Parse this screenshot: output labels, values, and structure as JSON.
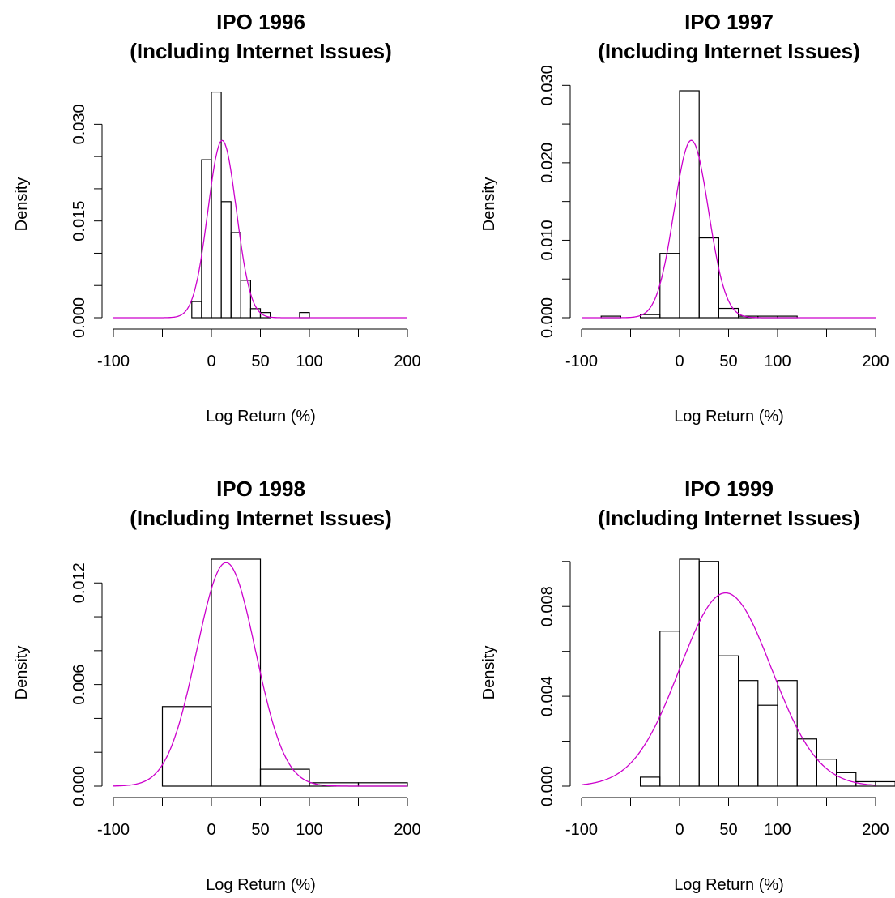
{
  "chart_data": [
    {
      "type": "bar",
      "title": [
        "IPO 1996",
        "(Including Internet Issues)"
      ],
      "xlabel": "Log Return (%)",
      "ylabel": "Density",
      "xlim": [
        -100,
        200
      ],
      "ylim": [
        0,
        0.0352
      ],
      "xticks": [
        -100,
        -50,
        0,
        50,
        100,
        150,
        200
      ],
      "xtick_labels": [
        "-100",
        "",
        "0",
        "50",
        "100",
        "",
        "200"
      ],
      "yticks": [
        0,
        0.005,
        0.01,
        0.015,
        0.02,
        0.025,
        0.03
      ],
      "ytick_labels": [
        "0.000",
        "",
        "",
        "0.015",
        "",
        "",
        "0.030"
      ],
      "bins": [
        [
          -20,
          -10,
          0.0025
        ],
        [
          -10,
          0,
          0.0245
        ],
        [
          0,
          10,
          0.035
        ],
        [
          10,
          20,
          0.018
        ],
        [
          20,
          30,
          0.0132
        ],
        [
          30,
          40,
          0.0058
        ],
        [
          40,
          50,
          0.0014
        ],
        [
          50,
          60,
          0.0008
        ],
        [
          90,
          100,
          0.0008
        ]
      ],
      "density_curve": {
        "mean": 11.0,
        "sd": 14.5,
        "peak": 0.0275,
        "color": "#cc00cc"
      }
    },
    {
      "type": "bar",
      "title": [
        "IPO 1997",
        "(Including Internet Issues)"
      ],
      "xlabel": "Log Return (%)",
      "ylabel": "Density",
      "xlim": [
        -100,
        200
      ],
      "ylim": [
        0,
        0.0293
      ],
      "xticks": [
        -100,
        -50,
        0,
        50,
        100,
        150,
        200
      ],
      "xtick_labels": [
        "-100",
        "",
        "0",
        "50",
        "100",
        "",
        "200"
      ],
      "yticks": [
        0,
        0.005,
        0.01,
        0.015,
        0.02,
        0.025,
        0.03
      ],
      "ytick_labels": [
        "0.000",
        "",
        "0.010",
        "",
        "0.020",
        "",
        "0.030"
      ],
      "bins": [
        [
          -80,
          -60,
          0.0002
        ],
        [
          -40,
          -20,
          0.0004
        ],
        [
          -20,
          0,
          0.0083
        ],
        [
          0,
          20,
          0.0293
        ],
        [
          20,
          40,
          0.0103
        ],
        [
          40,
          60,
          0.0012
        ],
        [
          60,
          80,
          0.0002
        ],
        [
          80,
          100,
          0.0002
        ],
        [
          100,
          120,
          0.0002
        ]
      ],
      "density_curve": {
        "mean": 12.0,
        "sd": 17.5,
        "peak": 0.0229,
        "color": "#cc00cc"
      }
    },
    {
      "type": "bar",
      "title": [
        "IPO 1998",
        "(Including Internet Issues)"
      ],
      "xlabel": "Log Return (%)",
      "ylabel": "Density",
      "xlim": [
        -100,
        200
      ],
      "ylim": [
        0,
        0.0134
      ],
      "xticks": [
        -100,
        -50,
        0,
        50,
        100,
        150,
        200
      ],
      "xtick_labels": [
        "-100",
        "",
        "0",
        "50",
        "100",
        "",
        "200"
      ],
      "yticks": [
        0,
        0.002,
        0.004,
        0.006,
        0.008,
        0.01,
        0.012
      ],
      "ytick_labels": [
        "0.000",
        "",
        "",
        "0.006",
        "",
        "",
        "0.012"
      ],
      "bins": [
        [
          -50,
          0,
          0.0047
        ],
        [
          0,
          50,
          0.0134
        ],
        [
          50,
          100,
          0.001
        ],
        [
          100,
          150,
          0.0002
        ],
        [
          150,
          200,
          0.0002
        ]
      ],
      "density_curve": {
        "mean": 15.0,
        "sd": 30.0,
        "peak": 0.0132,
        "color": "#cc00cc"
      }
    },
    {
      "type": "bar",
      "title": [
        "IPO 1999",
        "(Including Internet Issues)"
      ],
      "xlabel": "Log Return (%)",
      "ylabel": "Density",
      "xlim": [
        -100,
        200
      ],
      "ylim": [
        0,
        0.0101
      ],
      "xticks": [
        -100,
        -50,
        0,
        50,
        100,
        150,
        200
      ],
      "xtick_labels": [
        "-100",
        "",
        "0",
        "50",
        "100",
        "",
        "200"
      ],
      "yticks": [
        0,
        0.002,
        0.004,
        0.006,
        0.008,
        0.01
      ],
      "ytick_labels": [
        "0.000",
        "",
        "0.004",
        "",
        "0.008",
        ""
      ],
      "bins": [
        [
          -40,
          -20,
          0.0004
        ],
        [
          -20,
          0,
          0.0069
        ],
        [
          0,
          20,
          0.0101
        ],
        [
          20,
          40,
          0.01
        ],
        [
          40,
          60,
          0.0058
        ],
        [
          60,
          80,
          0.0047
        ],
        [
          80,
          100,
          0.0036
        ],
        [
          100,
          120,
          0.0047
        ],
        [
          120,
          140,
          0.0021
        ],
        [
          140,
          160,
          0.0012
        ],
        [
          160,
          180,
          0.0006
        ],
        [
          180,
          200,
          0.0002
        ],
        [
          200,
          220,
          0.0002
        ]
      ],
      "density_curve": {
        "mean": 47.0,
        "sd": 47.0,
        "peak": 0.0086,
        "color": "#cc00cc"
      }
    }
  ]
}
